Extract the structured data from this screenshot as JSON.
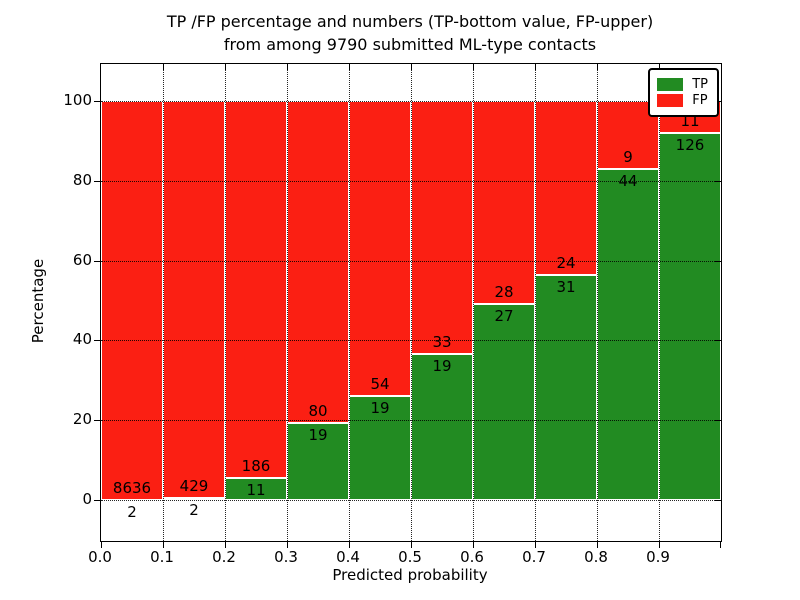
{
  "figure": {
    "title_line1": "TP /FP percentage and numbers (TP-bottom value, FP-upper)",
    "title_line2": "from among 9790 submitted ML-type contacts"
  },
  "chart_data": {
    "type": "bar",
    "stacked": true,
    "normalized_to_100_percent": true,
    "title": "TP /FP percentage and numbers (TP-bottom value, FP-upper)\nfrom among 9790 submitted ML-type contacts",
    "xlabel": "Predicted probability",
    "ylabel": "Percentage",
    "xlim": [
      0.0,
      1.0
    ],
    "ylim": [
      -10.5,
      110.5
    ],
    "grid": true,
    "x_tick_labels": [
      "0.0",
      "0.1",
      "0.2",
      "0.3",
      "0.4",
      "0.5",
      "0.6",
      "0.7",
      "0.8",
      "0.9"
    ],
    "y_tick_values": [
      0,
      20,
      40,
      60,
      80,
      100
    ],
    "categories": [
      "0.0-0.1",
      "0.1-0.2",
      "0.2-0.3",
      "0.3-0.4",
      "0.4-0.5",
      "0.5-0.6",
      "0.6-0.7",
      "0.7-0.8",
      "0.8-0.9",
      "0.9-1.0"
    ],
    "series": [
      {
        "name": "TP",
        "color": "#228b22",
        "values": [
          2,
          2,
          11,
          19,
          19,
          19,
          27,
          31,
          44,
          126
        ]
      },
      {
        "name": "FP",
        "color": "#fb1f13",
        "values": [
          8636,
          429,
          186,
          80,
          54,
          33,
          28,
          24,
          9,
          11
        ]
      }
    ],
    "tp_percent_of_bin": [
      0.02,
      0.46,
      5.58,
      19.19,
      26.03,
      36.54,
      49.09,
      56.36,
      83.02,
      91.97
    ],
    "total_contacts": 9790,
    "legend": {
      "position": "upper right",
      "entries": [
        {
          "label": "TP",
          "color": "#228b22"
        },
        {
          "label": "FP",
          "color": "#fb1f13"
        }
      ]
    }
  }
}
